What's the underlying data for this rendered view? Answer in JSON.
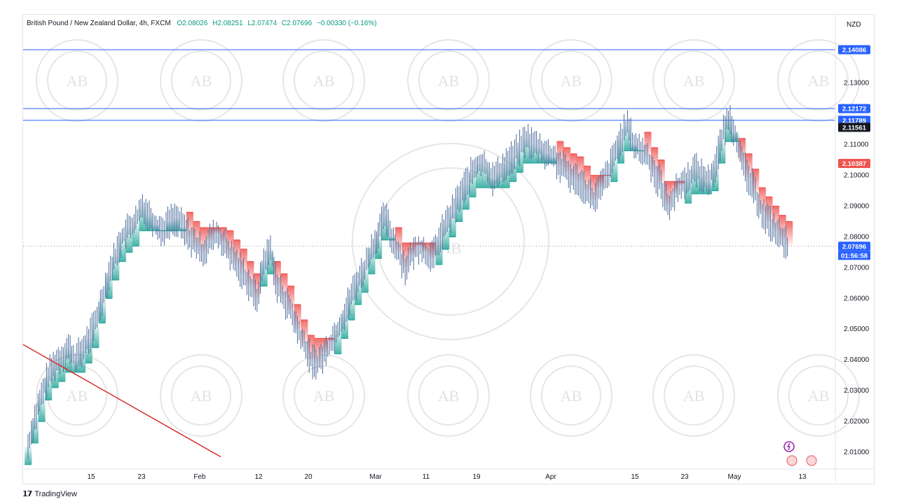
{
  "legend": {
    "symbol": "British Pound / New Zealand Dollar, 4h, FXCM",
    "open": "O2.08026",
    "high": "H2.08251",
    "low": "L2.07474",
    "close": "C2.07696",
    "change": "−0.00330 (−0.16%)"
  },
  "currency": "NZD",
  "brand": "TradingView",
  "watermark": "AB",
  "colors": {
    "up": "#26a69a",
    "down": "#ef5350",
    "candle": "#4a6a9a",
    "hline": "#2962ff",
    "trend": "#d32f2f"
  },
  "chart_data": {
    "type": "line",
    "ylim": [
      2.005,
      2.152
    ],
    "y_ticks": [
      "2.13000",
      "2.11000",
      "2.10000",
      "2.09000",
      "2.08000",
      "2.07000",
      "2.06000",
      "2.05000",
      "2.04000",
      "2.03000",
      "2.02000",
      "2.01000"
    ],
    "x_ticks": [
      "15",
      "23",
      "Feb",
      "12",
      "20",
      "Mar",
      "11",
      "19",
      "Apr",
      "15",
      "23",
      "May",
      "13"
    ],
    "price_tags": [
      {
        "label": "2.14086",
        "value": 2.14086,
        "color": "#2962ff"
      },
      {
        "label": "2.12172",
        "value": 2.12172,
        "color": "#2962ff"
      },
      {
        "label": "2.11789",
        "value": 2.11789,
        "color": "#2962ff"
      },
      {
        "label": "2.11561",
        "value": 2.11561,
        "color": "#131722"
      },
      {
        "label": "2.10387",
        "value": 2.10387,
        "color": "#ef5350"
      },
      {
        "label": "2.07696",
        "value": 2.07696,
        "color": "#2962ff"
      }
    ],
    "countdown": "01:56:58",
    "horizontal_lines": [
      2.14086,
      2.12172,
      2.11789
    ],
    "last_price": 2.07696,
    "series": [
      {
        "values": [
          2.012,
          2.021,
          2.028,
          2.035,
          2.039,
          2.041,
          2.044,
          2.04,
          2.043,
          2.047,
          2.052,
          2.06,
          2.068,
          2.074,
          2.08,
          2.083,
          2.085,
          2.09,
          2.087,
          2.084,
          2.082,
          2.085,
          2.086,
          2.083,
          2.08,
          2.077,
          2.075,
          2.079,
          2.081,
          2.078,
          2.074,
          2.071,
          2.068,
          2.064,
          2.06,
          2.072,
          2.076,
          2.064,
          2.06,
          2.056,
          2.05,
          2.045,
          2.04,
          2.039,
          2.042,
          2.046,
          2.05,
          2.055,
          2.061,
          2.066,
          2.07,
          2.076,
          2.081,
          2.087,
          2.08,
          2.075,
          2.07,
          2.074,
          2.077,
          2.075,
          2.073,
          2.079,
          2.084,
          2.088,
          2.093,
          2.097,
          2.101,
          2.104,
          2.103,
          2.099,
          2.101,
          2.104,
          2.106,
          2.109,
          2.112,
          2.11,
          2.109,
          2.107,
          2.106,
          2.103,
          2.101,
          2.099,
          2.098,
          2.095,
          2.092,
          2.096,
          2.1,
          2.106,
          2.112,
          2.116,
          2.11,
          2.108,
          2.106,
          2.101,
          2.097,
          2.09,
          2.094,
          2.097,
          2.099,
          2.102,
          2.1,
          2.098,
          2.103,
          2.112,
          2.119,
          2.114,
          2.104,
          2.099,
          2.094,
          2.088,
          2.085,
          2.082,
          2.079,
          2.077
        ]
      }
    ],
    "trendline": [
      [
        0,
        2.04
      ],
      [
        0.23,
        2.008
      ]
    ]
  }
}
